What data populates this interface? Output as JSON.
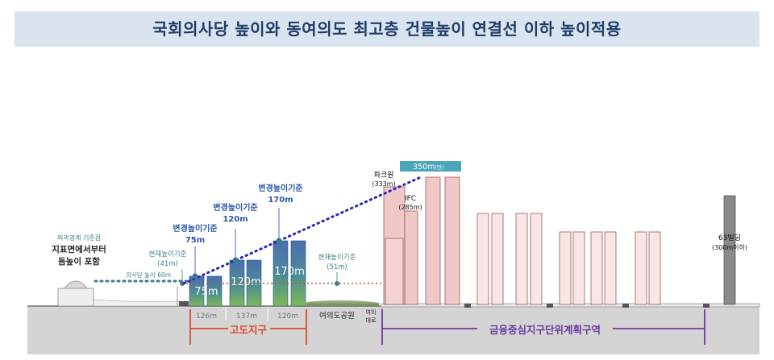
{
  "title": "국회의사당 높이와 동여의도 최고층 건물높이 연결선 이하 높이적용",
  "labels": {
    "outer_line_1": "외곽경계 기준점",
    "outer_line_2": "지표면에서부터",
    "outer_line_3": "돔높이 포함",
    "assembly_height": "의사당 높이 60m",
    "current_left_1": "현재높이기준",
    "current_left_2": "(41m)",
    "block1_1": "변경높이기준",
    "block1_2": "75m",
    "block2_1": "변경높이기준",
    "block2_2": "120m",
    "block3_1": "변경높이기준",
    "block3_2": "170m",
    "block1_in": "75m",
    "block2_in": "120m",
    "block3_in": "170m",
    "current_right_1": "현재높이기준",
    "current_right_2": "(51m)",
    "parkone_1": "파크원",
    "parkone_2": "(333m)",
    "ifc_1": "IFC",
    "ifc_2": "(285m)",
    "max_height": "350m",
    "max_height_suffix": "(안)",
    "b63_1": "63빌딩",
    "b63_2": "(300m이하)",
    "dist1": "126m",
    "dist2": "137m",
    "dist3": "120m",
    "park": "여의도공원",
    "road_1": "여의",
    "road_2": "대로",
    "district_left": "고도지구",
    "district_right": "금융중심지구단위계획구역"
  },
  "colors": {
    "title_bg": "#d9e4f0",
    "title_text": "#1f3c66",
    "label_blue": "#2e56a6",
    "dotted_line": "#2a2ab8",
    "teal": "#3f7f86",
    "orange": "#b05a28",
    "district_red": "#e04a2e",
    "district_purple": "#6b3aa0",
    "pink": "#f0c8c8",
    "pink_light": "#f8e6e6",
    "gray_tower": "#8a8a8a",
    "ground": "#d4d4d4"
  }
}
